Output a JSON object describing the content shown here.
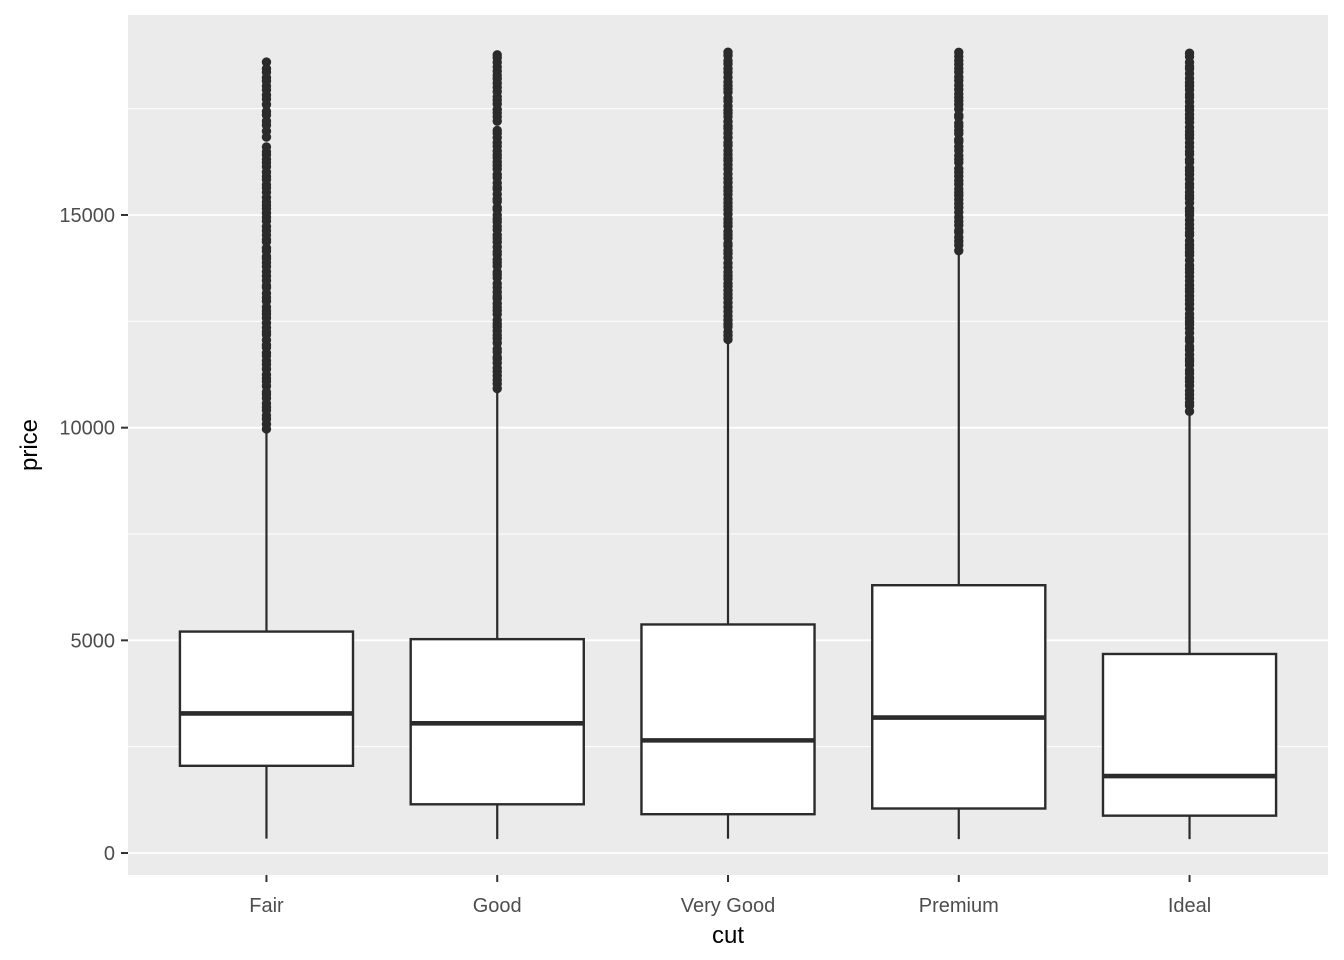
{
  "chart_data": {
    "type": "boxplot",
    "title": "",
    "xlabel": "cut",
    "ylabel": "price",
    "categories": [
      "Fair",
      "Good",
      "Very Good",
      "Premium",
      "Ideal"
    ],
    "series": [
      {
        "name": "Fair",
        "lower": 337,
        "q1": 2050,
        "median": 3282,
        "q3": 5206,
        "upper": 9930,
        "outlier_segments": [
          [
            9990,
            10790
          ],
          [
            10860,
            13060
          ],
          [
            13170,
            16600
          ],
          [
            16850,
            17460
          ],
          [
            17610,
            18574
          ]
        ]
      },
      {
        "name": "Good",
        "lower": 327,
        "q1": 1145,
        "median": 3050,
        "q3": 5028,
        "upper": 10850,
        "outlier_segments": [
          [
            10930,
            16910
          ],
          [
            16980,
            17200
          ],
          [
            17290,
            18788
          ]
        ]
      },
      {
        "name": "Very Good",
        "lower": 336,
        "q1": 912,
        "median": 2648,
        "q3": 5373,
        "upper": 12030,
        "outlier_segments": [
          [
            12070,
            18818
          ]
        ]
      },
      {
        "name": "Premium",
        "lower": 326,
        "q1": 1046,
        "median": 3185,
        "q3": 6296,
        "upper": 14140,
        "outlier_segments": [
          [
            14180,
            18823
          ]
        ]
      },
      {
        "name": "Ideal",
        "lower": 326,
        "q1": 878,
        "median": 1810,
        "q3": 4679,
        "upper": 10360,
        "outlier_segments": [
          [
            10400,
            18806
          ]
        ]
      }
    ],
    "y_axis": {
      "major_ticks": [
        0,
        5000,
        10000,
        15000
      ],
      "major_tick_labels": [
        "0",
        "5000",
        "10000",
        "15000"
      ],
      "minor_ticks": [
        2500,
        7500,
        12500,
        17500
      ],
      "range": [
        -520,
        19700
      ],
      "grid": true
    },
    "x_axis": {
      "tick_labels": [
        "Fair",
        "Good",
        "Very Good",
        "Premium",
        "Ideal"
      ]
    },
    "legend": null,
    "style": {
      "panel_bg": "#EBEBEB",
      "grid_color": "#FFFFFF",
      "box_fill": "#FFFFFF",
      "line_color": "#2B2B2B",
      "tick_mark_color": "#333333",
      "tick_label_color": "#4D4D4D",
      "axis_title_color": "#000000",
      "outer_bg": "#FFFFFF"
    }
  }
}
